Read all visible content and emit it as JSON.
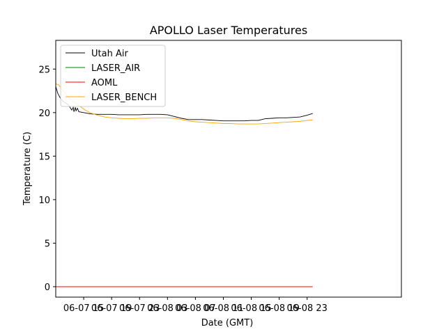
{
  "chart_data": {
    "type": "line",
    "title": "APOLLO Laser Temperatures",
    "xlabel": "Date (GMT)",
    "ylabel": "Temperature (C)",
    "x_unit": "hours since 06-07 11:00 GMT",
    "xlim": [
      0,
      49.5
    ],
    "ylim": [
      -1.2,
      28.3
    ],
    "xticks": [
      {
        "x": 4,
        "label": "06-07 15"
      },
      {
        "x": 8,
        "label": "06-07 19"
      },
      {
        "x": 12,
        "label": "06-07 23"
      },
      {
        "x": 16,
        "label": "06-08 03"
      },
      {
        "x": 20,
        "label": "06-08 07"
      },
      {
        "x": 24,
        "label": "06-08 11"
      },
      {
        "x": 28,
        "label": "06-08 15"
      },
      {
        "x": 32,
        "label": "06-08 19"
      },
      {
        "x": 36,
        "label": "06-08 23"
      }
    ],
    "yticks": [
      0,
      5,
      10,
      15,
      20,
      25
    ],
    "legend_location": "upper-left",
    "series": [
      {
        "name": "Utah Air",
        "color": "#000000",
        "x": [
          0,
          0.3,
          0.7,
          1.2,
          1.8,
          2.3,
          2.5,
          2.6,
          2.8,
          2.9,
          3.1,
          3.3,
          4,
          5,
          6,
          7,
          8,
          9,
          10,
          11,
          12,
          13,
          14,
          15,
          16,
          17,
          18,
          19,
          20,
          21,
          22,
          23,
          24,
          25,
          26,
          27,
          28,
          29,
          30,
          31,
          32,
          33,
          34,
          35,
          36,
          36.8
        ],
        "y": [
          23.0,
          22.2,
          21.6,
          21.2,
          20.9,
          20.3,
          20.6,
          20.1,
          20.6,
          20.2,
          20.5,
          20.1,
          20.0,
          19.85,
          19.8,
          19.8,
          19.8,
          19.75,
          19.75,
          19.75,
          19.75,
          19.8,
          19.8,
          19.8,
          19.75,
          19.55,
          19.35,
          19.2,
          19.2,
          19.2,
          19.15,
          19.1,
          19.05,
          19.05,
          19.05,
          19.05,
          19.1,
          19.1,
          19.3,
          19.35,
          19.4,
          19.4,
          19.45,
          19.5,
          19.7,
          19.9
        ]
      },
      {
        "name": "LASER_AIR",
        "color": "#008000",
        "x": [],
        "y": []
      },
      {
        "name": "AOML",
        "color": "#ff0000",
        "x": [
          0,
          36.8
        ],
        "y": [
          0,
          0
        ]
      },
      {
        "name": "LASER_BENCH",
        "color": "#ffa500",
        "x": [
          0,
          0.4,
          0.8,
          1.4,
          2,
          2.8,
          3.5,
          4.2,
          5,
          6,
          7,
          8,
          9,
          10,
          11,
          12,
          13,
          14,
          15,
          16,
          17,
          18,
          19,
          20,
          21,
          22,
          23,
          24,
          25,
          26,
          27,
          28,
          29,
          30,
          31,
          32,
          33,
          34,
          35,
          36,
          36.8
        ],
        "y": [
          23.3,
          23.2,
          22.8,
          22.2,
          21.6,
          21.1,
          20.7,
          20.3,
          19.95,
          19.7,
          19.5,
          19.4,
          19.35,
          19.3,
          19.3,
          19.35,
          19.35,
          19.4,
          19.4,
          19.4,
          19.35,
          19.2,
          19.05,
          18.95,
          18.9,
          18.85,
          18.8,
          18.75,
          18.75,
          18.7,
          18.7,
          18.7,
          18.7,
          18.75,
          18.8,
          18.85,
          18.9,
          18.95,
          19.0,
          19.1,
          19.15
        ]
      }
    ]
  }
}
